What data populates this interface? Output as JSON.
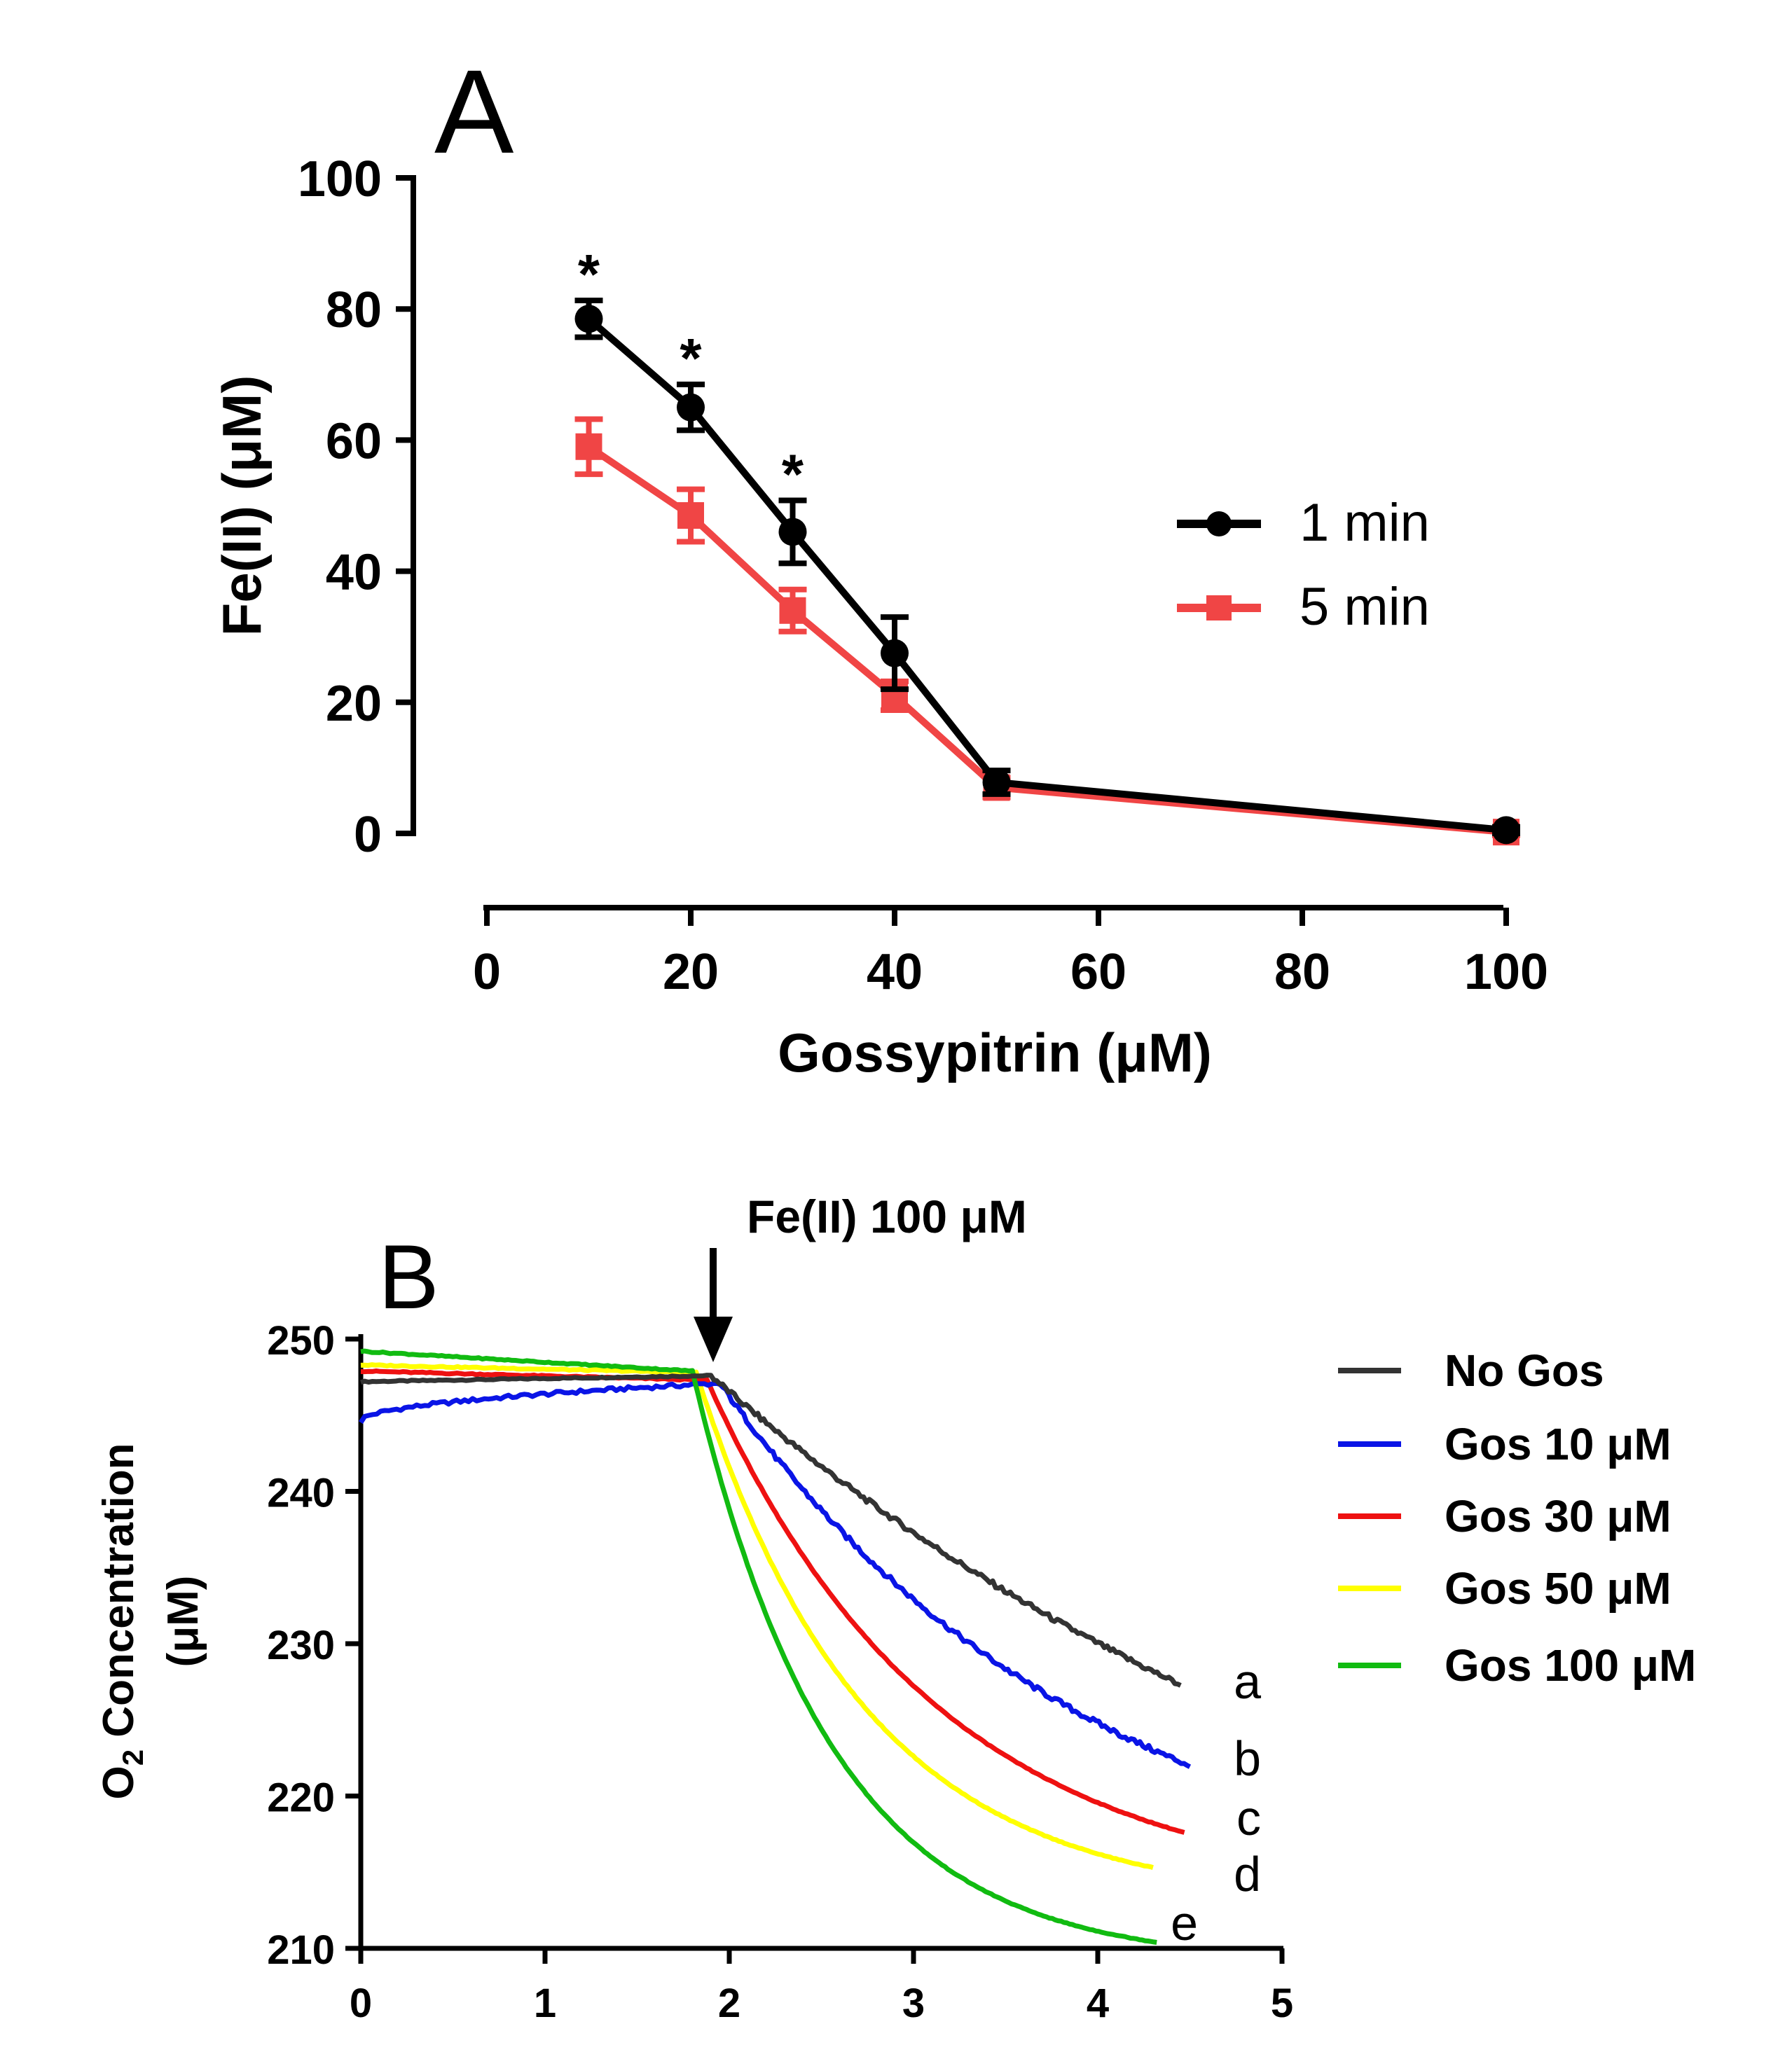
{
  "chart_data": [
    {
      "type": "line",
      "panel_label": "A",
      "xlabel": "Gossypitrin (μM)",
      "ylabel": "Fe(II) (μM)",
      "xlim": [
        0,
        100
      ],
      "ylim": [
        0,
        100
      ],
      "x_ticks": [
        "0",
        "20",
        "40",
        "60",
        "80",
        "100"
      ],
      "y_ticks": [
        "0",
        "20",
        "40",
        "60",
        "80",
        "100"
      ],
      "legend_position": "right",
      "series": [
        {
          "name": "1 min",
          "color": "#000000",
          "marker": "circle",
          "points": [
            {
              "x": 10,
              "y": 78.5,
              "err": 2.8
            },
            {
              "x": 20,
              "y": 65,
              "err": 3.5
            },
            {
              "x": 30,
              "y": 46,
              "err": 4.8
            },
            {
              "x": 40,
              "y": 27.5,
              "err": 5.5
            },
            {
              "x": 50,
              "y": 7.8,
              "err": 1.8
            },
            {
              "x": 100,
              "y": 0.5,
              "err": 0.5
            }
          ]
        },
        {
          "name": "5 min",
          "color": "#f04545",
          "marker": "square",
          "points": [
            {
              "x": 10,
              "y": 59,
              "err": 4.2
            },
            {
              "x": 20,
              "y": 48.5,
              "err": 4.0
            },
            {
              "x": 30,
              "y": 34,
              "err": 3.2
            },
            {
              "x": 40,
              "y": 21,
              "err": 2.2
            },
            {
              "x": 50,
              "y": 7,
              "err": 1.5
            },
            {
              "x": 100,
              "y": 0.2,
              "err": 0.5
            }
          ]
        }
      ],
      "annotations": [
        {
          "text": "*",
          "x": 10
        },
        {
          "text": "*",
          "x": 20
        },
        {
          "text": "*",
          "x": 30
        }
      ]
    },
    {
      "type": "line",
      "panel_label": "B",
      "ylabel_line1": "O",
      "ylabel_sub": "2",
      "ylabel_line1_rest": " Concentration",
      "ylabel_line2": "(μM)",
      "xlim": [
        0,
        5
      ],
      "ylim": [
        210,
        250
      ],
      "x_ticks": [
        "0",
        "1",
        "2",
        "3",
        "4",
        "5"
      ],
      "y_ticks": [
        "210",
        "220",
        "230",
        "240",
        "250"
      ],
      "arrow_label": "Fe(II) 100 μM",
      "arrow_x": 1.9,
      "legend_position": "right",
      "series": [
        {
          "name": "No Gos",
          "color": "#333333",
          "end_label": "a",
          "start_y": 247.2,
          "pre_end_y": 247.6,
          "break_x": 1.9,
          "end_x": 4.45,
          "end_y": 227.3,
          "curve": 0.1
        },
        {
          "name": "Gos 10 μM",
          "color": "#0a14e6",
          "end_label": "b",
          "start_y": 244.6,
          "pre_end_y": 247.1,
          "break_x": 1.95,
          "end_x": 4.5,
          "end_y": 222.0,
          "curve": 0.3
        },
        {
          "name": "Gos 30 μM",
          "color": "#ee1111",
          "end_label": "c",
          "start_y": 247.9,
          "pre_end_y": 247.3,
          "break_x": 1.88,
          "end_x": 4.47,
          "end_y": 217.6,
          "curve": 0.55
        },
        {
          "name": "Gos 50 μM",
          "color": "#ffff00",
          "end_label": "d",
          "start_y": 248.3,
          "pre_end_y": 247.8,
          "break_x": 1.82,
          "end_x": 4.3,
          "end_y": 215.3,
          "curve": 0.75
        },
        {
          "name": "Gos 100 μM",
          "color": "#11bb11",
          "end_label": "e",
          "start_y": 249.2,
          "pre_end_y": 247.9,
          "break_x": 1.8,
          "end_x": 4.32,
          "end_y": 210.4,
          "curve": 0.95
        }
      ]
    }
  ]
}
